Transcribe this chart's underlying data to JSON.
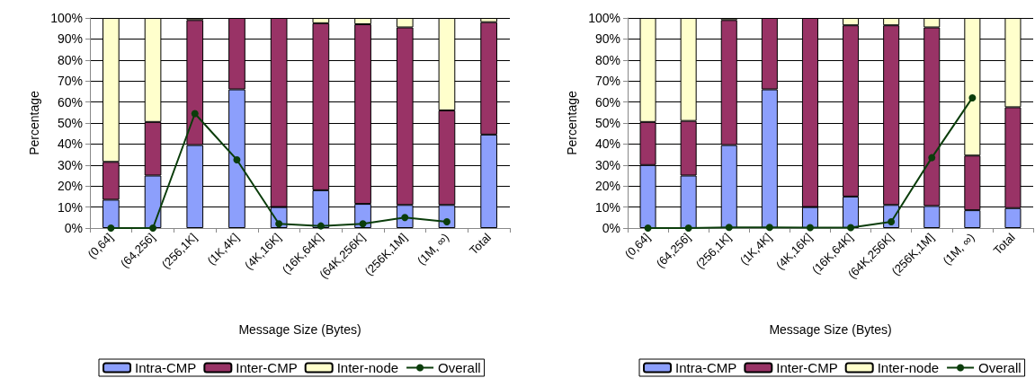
{
  "chart_data": [
    {
      "type": "bar",
      "stacked": true,
      "xlabel": "Message Size (Bytes)",
      "ylabel": "Percentage",
      "categories": [
        "(0,64]",
        "(64,256]",
        "(256,1K]",
        "(1K,4K]",
        "(4K,16K]",
        "(16K,64K]",
        "(64K,256K]",
        "(256K,1M]",
        "(1M, ∞)",
        "Total"
      ],
      "ylim": [
        0,
        100
      ],
      "yticks": [
        {
          "value": 0,
          "label": "0%"
        },
        {
          "value": 10,
          "label": "10%"
        },
        {
          "value": 20,
          "label": "20%"
        },
        {
          "value": 30,
          "label": "30%"
        },
        {
          "value": 40,
          "label": "40%"
        },
        {
          "value": 50,
          "label": "50%"
        },
        {
          "value": 60,
          "label": "60%"
        },
        {
          "value": 70,
          "label": "70%"
        },
        {
          "value": 80,
          "label": "80%"
        },
        {
          "value": 90,
          "label": "90%"
        },
        {
          "value": 100,
          "label": "100%"
        }
      ],
      "grid": "y",
      "legend": "bottom",
      "marker": "circle",
      "series": [
        {
          "name": "Intra-CMP",
          "color": "#8c9ffc",
          "values": [
            13.5,
            25,
            39.5,
            66,
            10,
            18,
            11.5,
            11,
            11,
            44.5
          ]
        },
        {
          "name": "Inter-CMP",
          "color": "#993366",
          "values": [
            18,
            25.5,
            59.5,
            34,
            90,
            79.5,
            85.5,
            84.5,
            45,
            53.5
          ]
        },
        {
          "name": "Inter-node",
          "color": "#ffffcc",
          "values": [
            68.5,
            49.5,
            1,
            0,
            0,
            2.5,
            3,
            4.5,
            44,
            2
          ]
        },
        {
          "name": "Overall",
          "type": "line",
          "color": "#0b3d0b",
          "values": [
            0,
            0,
            54.5,
            32.5,
            2,
            1,
            2,
            5,
            3,
            null
          ]
        }
      ]
    },
    {
      "type": "bar",
      "stacked": true,
      "xlabel": "Message Size (Bytes)",
      "ylabel": "Percentage",
      "categories": [
        "(0,64]",
        "(64,256]",
        "(256,1K]",
        "(1K,4K]",
        "(4K,16K]",
        "(16K,64K]",
        "(64K,256K]",
        "(256K,1M]",
        "(1M, ∞)",
        "Total"
      ],
      "ylim": [
        0,
        100
      ],
      "yticks": [
        {
          "value": 0,
          "label": "0%"
        },
        {
          "value": 10,
          "label": "10%"
        },
        {
          "value": 20,
          "label": "20%"
        },
        {
          "value": 30,
          "label": "30%"
        },
        {
          "value": 40,
          "label": "40%"
        },
        {
          "value": 50,
          "label": "50%"
        },
        {
          "value": 60,
          "label": "60%"
        },
        {
          "value": 70,
          "label": "70%"
        },
        {
          "value": 80,
          "label": "80%"
        },
        {
          "value": 90,
          "label": "90%"
        },
        {
          "value": 100,
          "label": "100%"
        }
      ],
      "grid": "y",
      "legend": "bottom",
      "marker": "circle",
      "series": [
        {
          "name": "Intra-CMP",
          "color": "#8c9ffc",
          "values": [
            30,
            25,
            39.5,
            66,
            10,
            15,
            11,
            10.5,
            8.5,
            9.5
          ]
        },
        {
          "name": "Inter-CMP",
          "color": "#993366",
          "values": [
            20.5,
            26,
            59.5,
            34,
            90,
            81.5,
            85.5,
            85,
            26,
            48
          ]
        },
        {
          "name": "Inter-node",
          "color": "#ffffcc",
          "values": [
            49.5,
            49,
            1,
            0,
            0,
            3.5,
            3.5,
            4.5,
            65.5,
            42.5
          ]
        },
        {
          "name": "Overall",
          "type": "line",
          "color": "#0b3d0b",
          "values": [
            0,
            0,
            0.3,
            0.3,
            0.2,
            0.2,
            3,
            33.5,
            62,
            null
          ]
        }
      ]
    }
  ]
}
